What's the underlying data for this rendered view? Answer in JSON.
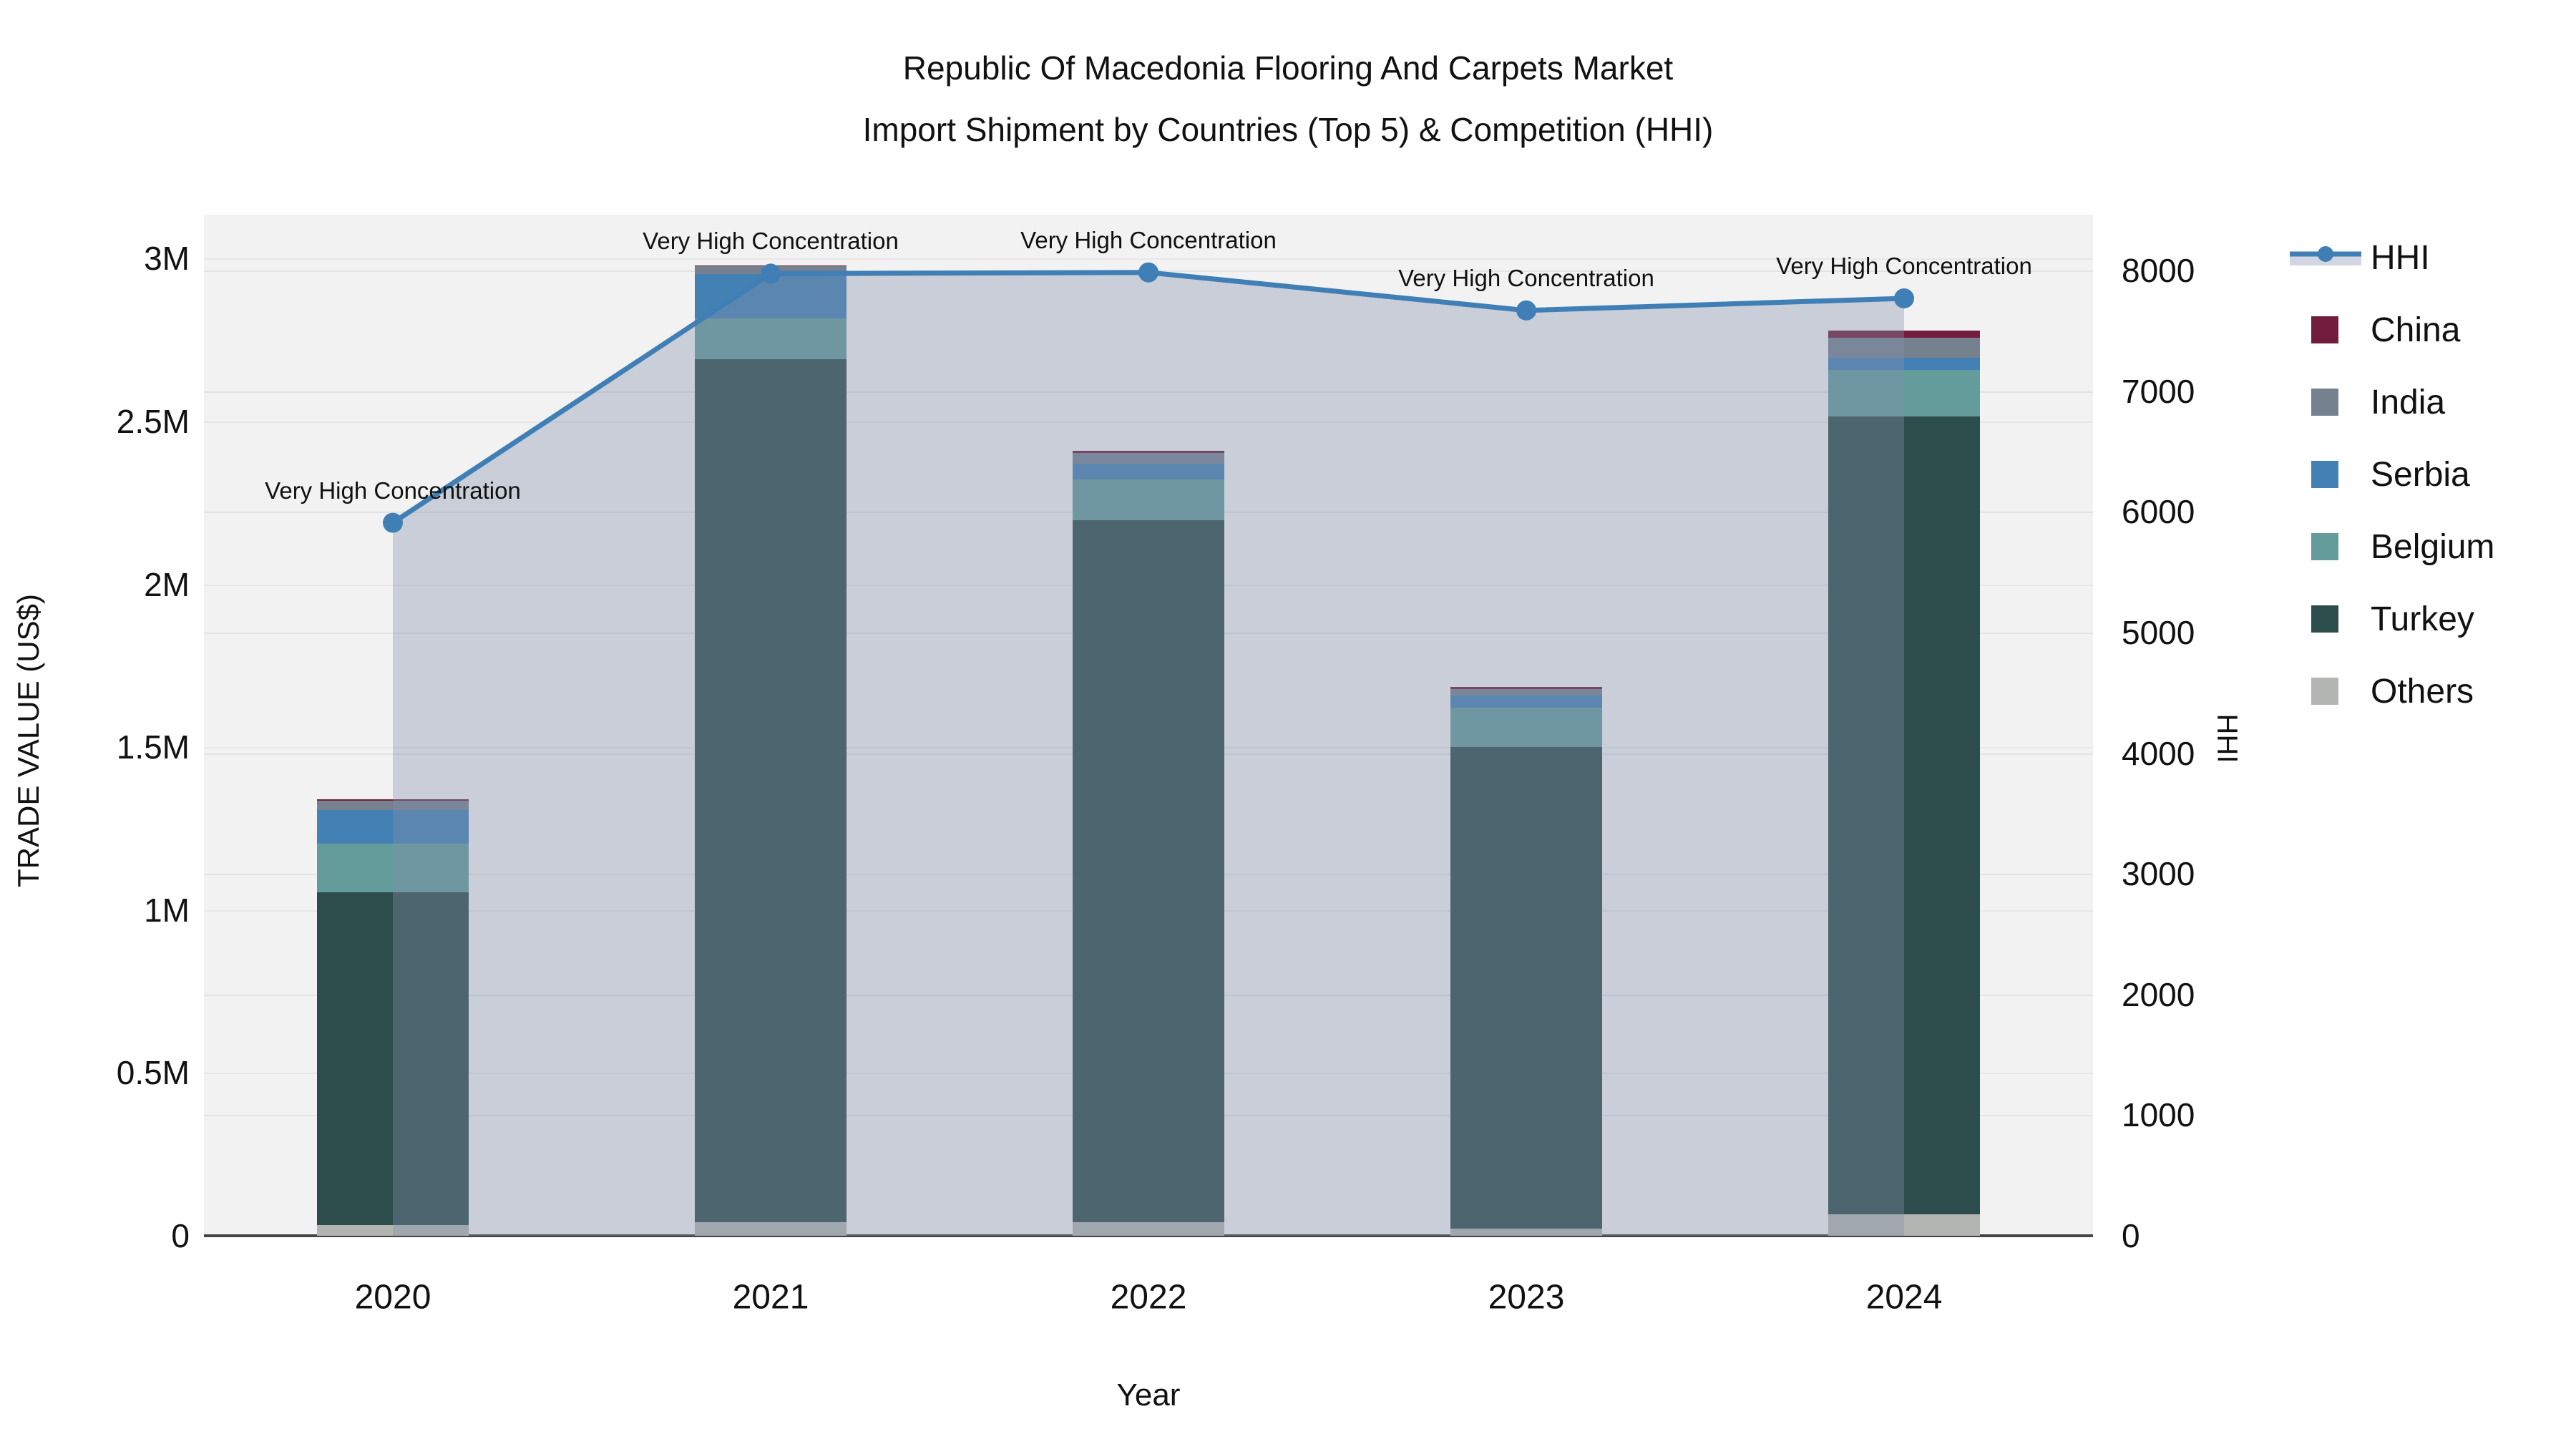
{
  "title": {
    "line1": "Republic Of Macedonia Flooring And Carpets Market",
    "line2": "Import Shipment by Countries (Top 5) & Competition (HHI)"
  },
  "axes": {
    "y_left": {
      "title": "TRADE VALUE (US$)",
      "ticks": [
        "0",
        "0.5M",
        "1M",
        "1.5M",
        "2M",
        "2.5M",
        "3M"
      ]
    },
    "y_right": {
      "title": "HHI",
      "ticks": [
        "0",
        "1000",
        "2000",
        "3000",
        "4000",
        "5000",
        "6000",
        "7000",
        "8000"
      ]
    },
    "x": {
      "title": "Year",
      "categories": [
        "2020",
        "2021",
        "2022",
        "2023",
        "2024"
      ]
    }
  },
  "legend": {
    "items": [
      {
        "label": "HHI",
        "type": "line",
        "color": "#3f7fb5"
      },
      {
        "label": "China",
        "type": "square",
        "color": "#721d3d"
      },
      {
        "label": "India",
        "type": "square",
        "color": "#75818f"
      },
      {
        "label": "Serbia",
        "type": "square",
        "color": "#4380b4"
      },
      {
        "label": "Belgium",
        "type": "square",
        "color": "#649c9b"
      },
      {
        "label": "Turkey",
        "type": "square",
        "color": "#2d4c4c"
      },
      {
        "label": "Others",
        "type": "square",
        "color": "#b3b5b2"
      }
    ]
  },
  "annotations": {
    "items": [
      {
        "year": "2020",
        "text": "Very High Concentration"
      },
      {
        "year": "2021",
        "text": "Very High Concentration"
      },
      {
        "year": "2022",
        "text": "Very High Concentration"
      },
      {
        "year": "2023",
        "text": "Very High Concentration"
      },
      {
        "year": "2024",
        "text": "Very High Concentration"
      }
    ]
  },
  "chart_data": {
    "type": "bar",
    "subtype": "stacked-bars-with-dual-axis-line",
    "title": "Republic Of Macedonia Flooring And Carpets Market Import Shipment by Countries (Top 5) & Competition (HHI)",
    "x": [
      "2020",
      "2021",
      "2022",
      "2023",
      "2024"
    ],
    "xlabel": "Year",
    "ylabel_left": "TRADE VALUE (US$)",
    "ylabel_right": "HHI",
    "ylim_left": [
      0,
      3000000
    ],
    "ylim_right": [
      0,
      8000
    ],
    "grid": true,
    "legend_position": "right",
    "stack_order_bottom_to_top": [
      "Others",
      "Turkey",
      "Belgium",
      "Serbia",
      "India",
      "China"
    ],
    "series": [
      {
        "name": "China",
        "axis": "left",
        "color": "#721d3d",
        "values": [
          5000,
          4000,
          7000,
          7000,
          20000
        ]
      },
      {
        "name": "India",
        "axis": "left",
        "color": "#75818f",
        "values": [
          27000,
          24000,
          34000,
          20000,
          62000
        ]
      },
      {
        "name": "Serbia",
        "axis": "left",
        "color": "#4380b4",
        "values": [
          105000,
          135000,
          48000,
          37000,
          37000
        ]
      },
      {
        "name": "Belgium",
        "axis": "left",
        "color": "#649c9b",
        "values": [
          149000,
          125000,
          125000,
          122000,
          143000
        ]
      },
      {
        "name": "Turkey",
        "axis": "left",
        "color": "#2d4c4c",
        "values": [
          1020000,
          2651000,
          2156000,
          1479000,
          2451000
        ]
      },
      {
        "name": "Others",
        "axis": "left",
        "color": "#b3b5b2",
        "values": [
          34000,
          41000,
          41000,
          21000,
          65000
        ]
      }
    ],
    "bar_totals": [
      1340000,
      2980000,
      2411000,
      1686000,
      2778000
    ],
    "line_series": {
      "name": "HHI",
      "axis": "right",
      "color": "#3f7fb5",
      "area_fill": "rgba(130,144,170,0.37)",
      "values": [
        5910,
        7975,
        7985,
        7670,
        7770
      ]
    }
  }
}
